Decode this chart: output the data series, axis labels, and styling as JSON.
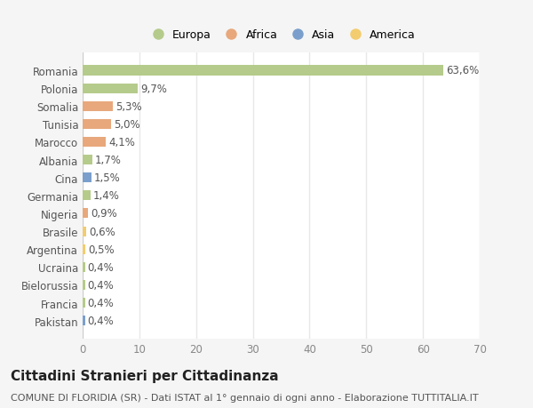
{
  "countries": [
    "Romania",
    "Polonia",
    "Somalia",
    "Tunisia",
    "Marocco",
    "Albania",
    "Cina",
    "Germania",
    "Nigeria",
    "Brasile",
    "Argentina",
    "Ucraina",
    "Bielorussia",
    "Francia",
    "Pakistan"
  ],
  "values": [
    63.6,
    9.7,
    5.3,
    5.0,
    4.1,
    1.7,
    1.5,
    1.4,
    0.9,
    0.6,
    0.5,
    0.4,
    0.4,
    0.4,
    0.4
  ],
  "labels": [
    "63,6%",
    "9,7%",
    "5,3%",
    "5,0%",
    "4,1%",
    "1,7%",
    "1,5%",
    "1,4%",
    "0,9%",
    "0,6%",
    "0,5%",
    "0,4%",
    "0,4%",
    "0,4%",
    "0,4%"
  ],
  "colors": [
    "#b5cb8b",
    "#b5cb8b",
    "#e8a87c",
    "#e8a87c",
    "#e8a87c",
    "#b5cb8b",
    "#7b9fcc",
    "#b5cb8b",
    "#e8a87c",
    "#f2cc6e",
    "#f2cc6e",
    "#b5cb8b",
    "#b5cb8b",
    "#b5cb8b",
    "#7b9fcc"
  ],
  "legend_labels": [
    "Europa",
    "Africa",
    "Asia",
    "America"
  ],
  "legend_colors": [
    "#b5cb8b",
    "#e8a87c",
    "#7b9fcc",
    "#f2cc6e"
  ],
  "xlim": [
    0,
    70
  ],
  "xticks": [
    0,
    10,
    20,
    30,
    40,
    50,
    60,
    70
  ],
  "title": "Cittadini Stranieri per Cittadinanza",
  "subtitle": "COMUNE DI FLORIDIA (SR) - Dati ISTAT al 1° gennaio di ogni anno - Elaborazione TUTTITALIA.IT",
  "bg_color": "#f5f5f5",
  "plot_bg_color": "#ffffff",
  "grid_color": "#e8e8e8",
  "label_fontsize": 8.5,
  "tick_fontsize": 8.5,
  "title_fontsize": 11,
  "subtitle_fontsize": 8,
  "bar_height": 0.55
}
